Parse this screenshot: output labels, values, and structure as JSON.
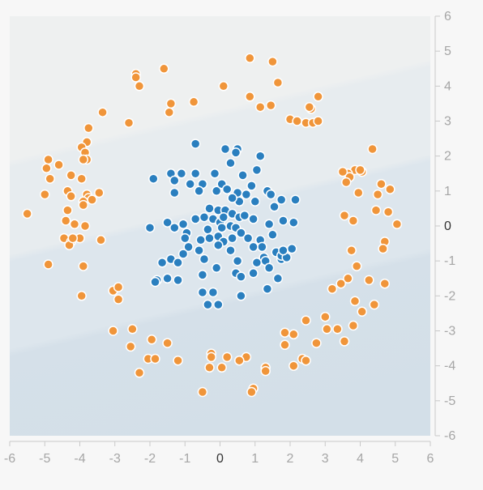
{
  "chart_data": {
    "type": "scatter",
    "title": "",
    "xlabel": "",
    "ylabel": "",
    "xlim": [
      -6,
      6
    ],
    "ylim": [
      -6,
      6
    ],
    "x_ticks": [
      -6,
      -5,
      -4,
      -3,
      -2,
      -1,
      0,
      1,
      2,
      3,
      4,
      5,
      6
    ],
    "y_ticks": [
      6,
      5,
      4,
      3,
      2,
      1,
      0,
      -1,
      -2,
      -3,
      -4,
      -5,
      -6
    ],
    "grid": false,
    "background": {
      "description": "decision-region shading, banded diagonally",
      "colors": [
        "#eef0f0",
        "#e4eaee",
        "#d9e4ec",
        "#d3dfe8"
      ]
    },
    "colors": {
      "inner_class": "#2a7fbf",
      "outer_class": "#f0953a",
      "point_stroke": "#ffffff",
      "tick_label": "#a6a6a6",
      "zero_label": "#333333"
    },
    "series": [
      {
        "class": "inner",
        "color": "#2a7fbf",
        "points": [
          [
            -0.7,
            2.35
          ],
          [
            0.15,
            2.2
          ],
          [
            0.5,
            2.2
          ],
          [
            0.45,
            2.1
          ],
          [
            0.3,
            1.8
          ],
          [
            1.15,
            2.0
          ],
          [
            -1.9,
            1.35
          ],
          [
            -1.4,
            1.5
          ],
          [
            -1.1,
            1.5
          ],
          [
            -0.7,
            1.5
          ],
          [
            -0.15,
            1.5
          ],
          [
            -0.5,
            1.2
          ],
          [
            0.65,
            1.45
          ],
          [
            1.05,
            1.6
          ],
          [
            -1.3,
            1.3
          ],
          [
            -0.85,
            1.2
          ],
          [
            -0.1,
            1.0
          ],
          [
            0.05,
            1.2
          ],
          [
            -1.3,
            0.95
          ],
          [
            -0.6,
            1.0
          ],
          [
            0.2,
            1.05
          ],
          [
            0.5,
            0.95
          ],
          [
            0.9,
            1.15
          ],
          [
            1.35,
            1.0
          ],
          [
            1.45,
            0.9
          ],
          [
            1.75,
            0.75
          ],
          [
            2.15,
            0.75
          ],
          [
            0.75,
            0.9
          ],
          [
            1.0,
            0.7
          ],
          [
            1.55,
            0.55
          ],
          [
            0.55,
            0.7
          ],
          [
            0.35,
            0.8
          ],
          [
            -0.3,
            0.5
          ],
          [
            -0.05,
            0.45
          ],
          [
            0.15,
            0.45
          ],
          [
            0.35,
            0.35
          ],
          [
            -0.2,
            0.2
          ],
          [
            -0.45,
            0.25
          ],
          [
            -0.7,
            0.2
          ],
          [
            -1.05,
            0.05
          ],
          [
            0.0,
            0.1
          ],
          [
            0.1,
            0.25
          ],
          [
            0.55,
            0.25
          ],
          [
            0.7,
            0.3
          ],
          [
            0.95,
            0.2
          ],
          [
            -1.5,
            0.1
          ],
          [
            -2.0,
            -0.05
          ],
          [
            -1.3,
            -0.05
          ],
          [
            -0.95,
            -0.2
          ],
          [
            -0.35,
            -0.1
          ],
          [
            0.05,
            -0.05
          ],
          [
            0.3,
            0.0
          ],
          [
            0.45,
            -0.05
          ],
          [
            0.6,
            -0.2
          ],
          [
            1.4,
            0.05
          ],
          [
            1.8,
            0.15
          ],
          [
            2.1,
            0.1
          ],
          [
            -1.0,
            -0.35
          ],
          [
            -0.55,
            -0.4
          ],
          [
            -0.3,
            -0.35
          ],
          [
            -0.05,
            -0.3
          ],
          [
            0.1,
            -0.45
          ],
          [
            0.35,
            -0.35
          ],
          [
            0.8,
            -0.35
          ],
          [
            1.15,
            -0.4
          ],
          [
            1.5,
            -0.25
          ],
          [
            1.2,
            -0.6
          ],
          [
            0.95,
            -0.6
          ],
          [
            1.6,
            -0.75
          ],
          [
            1.75,
            -0.95
          ],
          [
            -0.9,
            -0.6
          ],
          [
            -0.6,
            -0.7
          ],
          [
            -0.05,
            -0.55
          ],
          [
            0.3,
            -0.7
          ],
          [
            1.25,
            -0.9
          ],
          [
            1.3,
            -1.0
          ],
          [
            1.75,
            -0.85
          ],
          [
            1.9,
            -0.9
          ],
          [
            1.8,
            -0.7
          ],
          [
            2.05,
            -0.65
          ],
          [
            -1.65,
            -1.05
          ],
          [
            -1.4,
            -0.95
          ],
          [
            -1.2,
            -1.05
          ],
          [
            -1.05,
            -0.8
          ],
          [
            -0.45,
            -0.95
          ],
          [
            -0.1,
            -1.2
          ],
          [
            0.5,
            -1.0
          ],
          [
            1.05,
            -1.05
          ],
          [
            1.4,
            -1.2
          ],
          [
            -1.8,
            -1.55
          ],
          [
            -1.5,
            -1.5
          ],
          [
            -1.2,
            -1.55
          ],
          [
            -0.5,
            -1.4
          ],
          [
            0.45,
            -1.35
          ],
          [
            0.6,
            -1.45
          ],
          [
            0.95,
            -1.35
          ],
          [
            1.65,
            -1.5
          ],
          [
            -0.5,
            -1.9
          ],
          [
            -0.2,
            -1.9
          ],
          [
            0.6,
            -2.0
          ],
          [
            1.35,
            -1.8
          ],
          [
            -0.35,
            -2.25
          ],
          [
            -0.05,
            -2.25
          ],
          [
            -1.85,
            -1.6
          ]
        ]
      },
      {
        "class": "outer",
        "color": "#f0953a",
        "points": [
          [
            0.85,
            4.8
          ],
          [
            1.5,
            4.7
          ],
          [
            1.65,
            4.1
          ],
          [
            -1.6,
            4.5
          ],
          [
            -2.4,
            4.35
          ],
          [
            -2.4,
            4.25
          ],
          [
            -2.3,
            4.0
          ],
          [
            0.1,
            4.0
          ],
          [
            -1.4,
            3.5
          ],
          [
            -1.45,
            3.25
          ],
          [
            -0.75,
            3.55
          ],
          [
            0.85,
            3.7
          ],
          [
            1.15,
            3.4
          ],
          [
            1.45,
            3.45
          ],
          [
            2.6,
            3.35
          ],
          [
            2.55,
            3.4
          ],
          [
            2.8,
            3.7
          ],
          [
            2.0,
            3.05
          ],
          [
            2.2,
            3.0
          ],
          [
            2.45,
            2.95
          ],
          [
            2.65,
            2.95
          ],
          [
            2.8,
            3.0
          ],
          [
            -3.35,
            3.25
          ],
          [
            -2.6,
            2.95
          ],
          [
            -3.75,
            2.8
          ],
          [
            -3.8,
            2.4
          ],
          [
            -3.95,
            2.25
          ],
          [
            -3.85,
            2.1
          ],
          [
            -3.8,
            1.9
          ],
          [
            -3.9,
            1.9
          ],
          [
            -4.9,
            1.9
          ],
          [
            -4.6,
            1.75
          ],
          [
            -4.95,
            1.65
          ],
          [
            -4.85,
            1.35
          ],
          [
            -4.25,
            1.45
          ],
          [
            -3.95,
            1.35
          ],
          [
            -4.35,
            1.0
          ],
          [
            -3.45,
            0.95
          ],
          [
            -3.8,
            0.9
          ],
          [
            -3.75,
            0.8
          ],
          [
            -5.0,
            0.9
          ],
          [
            -4.25,
            0.85
          ],
          [
            -3.9,
            0.7
          ],
          [
            -3.65,
            0.75
          ],
          [
            -3.9,
            0.6
          ],
          [
            -5.5,
            0.35
          ],
          [
            -4.35,
            0.45
          ],
          [
            -4.4,
            0.15
          ],
          [
            -4.15,
            0.05
          ],
          [
            -3.85,
            0.0
          ],
          [
            -4.0,
            -0.35
          ],
          [
            -4.45,
            -0.35
          ],
          [
            -4.25,
            -0.45
          ],
          [
            -4.3,
            -0.55
          ],
          [
            -4.2,
            -0.35
          ],
          [
            -3.4,
            -0.4
          ],
          [
            -4.9,
            -1.1
          ],
          [
            -3.9,
            -1.15
          ],
          [
            -3.95,
            -2.0
          ],
          [
            -3.05,
            -1.85
          ],
          [
            -2.9,
            -1.75
          ],
          [
            -2.9,
            -2.1
          ],
          [
            4.35,
            2.2
          ],
          [
            3.85,
            1.6
          ],
          [
            3.65,
            1.5
          ],
          [
            3.7,
            1.4
          ],
          [
            3.5,
            1.55
          ],
          [
            4.05,
            1.55
          ],
          [
            4.0,
            1.6
          ],
          [
            4.6,
            1.2
          ],
          [
            3.6,
            1.25
          ],
          [
            4.85,
            1.05
          ],
          [
            4.5,
            0.9
          ],
          [
            3.95,
            0.95
          ],
          [
            3.55,
            0.3
          ],
          [
            3.8,
            0.15
          ],
          [
            4.45,
            0.45
          ],
          [
            4.8,
            0.4
          ],
          [
            5.05,
            0.05
          ],
          [
            4.7,
            -0.45
          ],
          [
            4.65,
            -0.65
          ],
          [
            3.75,
            -0.7
          ],
          [
            3.9,
            -1.15
          ],
          [
            3.65,
            -1.5
          ],
          [
            3.45,
            -1.65
          ],
          [
            4.25,
            -1.55
          ],
          [
            4.7,
            -1.65
          ],
          [
            3.2,
            -1.8
          ],
          [
            3.85,
            -2.15
          ],
          [
            4.4,
            -2.25
          ],
          [
            4.05,
            -2.45
          ],
          [
            2.45,
            -2.7
          ],
          [
            3.0,
            -2.6
          ],
          [
            3.35,
            -2.95
          ],
          [
            3.8,
            -2.85
          ],
          [
            3.05,
            -2.95
          ],
          [
            2.1,
            -3.1
          ],
          [
            1.85,
            -3.05
          ],
          [
            3.55,
            -3.3
          ],
          [
            2.75,
            -3.35
          ],
          [
            1.85,
            -3.4
          ],
          [
            2.35,
            -3.8
          ],
          [
            2.45,
            -3.85
          ],
          [
            2.1,
            -4.0
          ],
          [
            -3.05,
            -3.0
          ],
          [
            -2.5,
            -2.95
          ],
          [
            -1.95,
            -3.25
          ],
          [
            -1.5,
            -3.35
          ],
          [
            -2.55,
            -3.45
          ],
          [
            -2.05,
            -3.8
          ],
          [
            -1.85,
            -3.8
          ],
          [
            -1.2,
            -3.85
          ],
          [
            -0.25,
            -3.65
          ],
          [
            -0.25,
            -3.75
          ],
          [
            0.2,
            -3.75
          ],
          [
            0.75,
            -3.75
          ],
          [
            0.55,
            -3.85
          ],
          [
            -0.3,
            -4.05
          ],
          [
            0.05,
            -4.05
          ],
          [
            1.3,
            -4.05
          ],
          [
            1.3,
            -4.15
          ],
          [
            -2.3,
            -4.2
          ],
          [
            -0.5,
            -4.75
          ],
          [
            0.95,
            -4.65
          ],
          [
            0.9,
            -4.75
          ]
        ]
      }
    ]
  }
}
